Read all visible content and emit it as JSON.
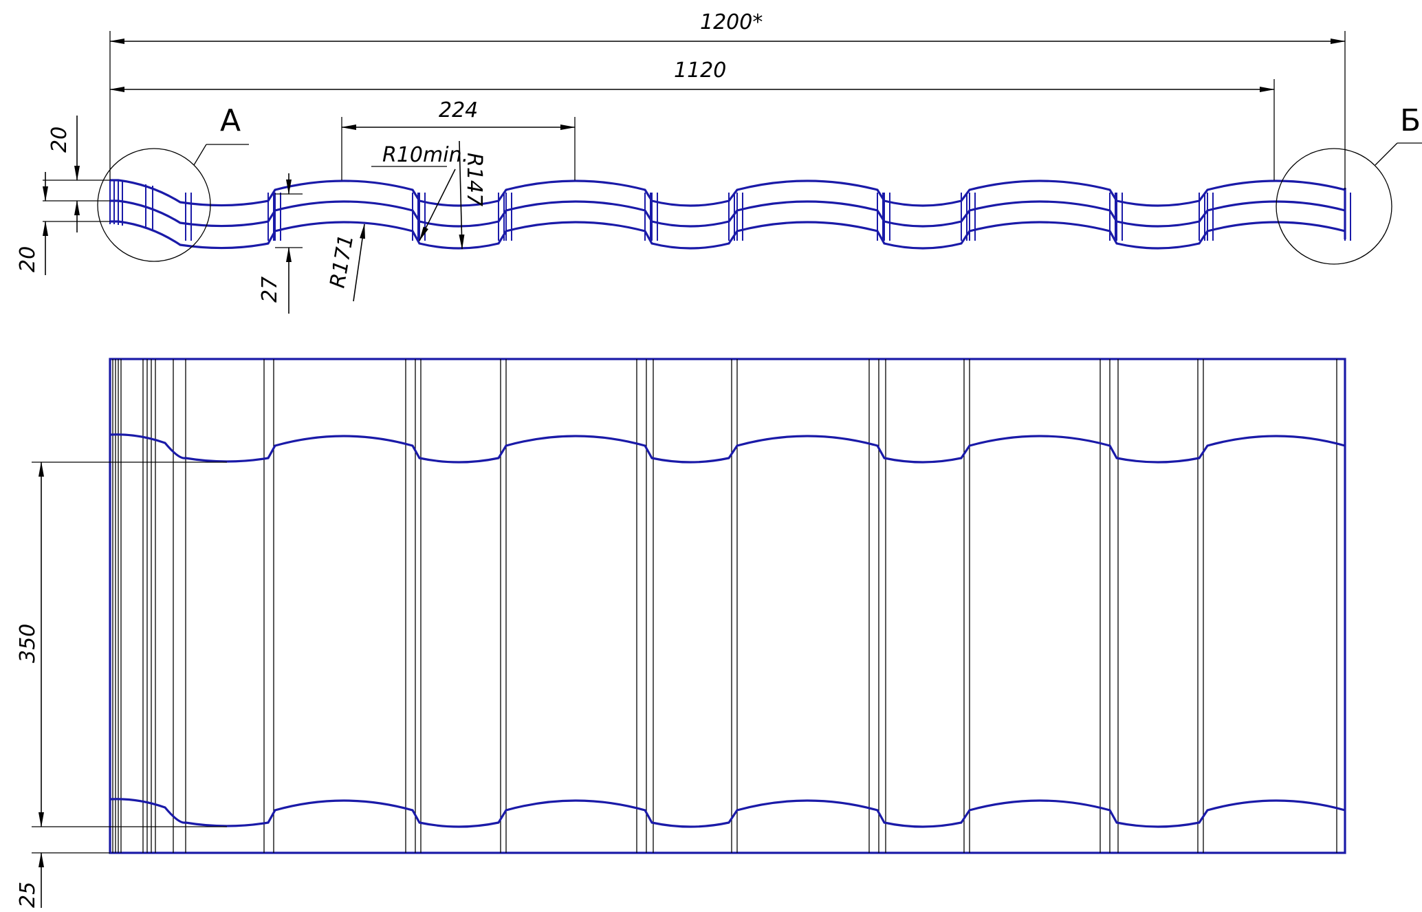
{
  "drawing": {
    "colors": {
      "profile": "#1a1aa8",
      "dimension": "#000000",
      "background": "#ffffff"
    },
    "dimensions": {
      "overall_width": "1200*",
      "effective_width": "1120",
      "wave_pitch": "224",
      "radius_min": "R10min.",
      "radius_crest": "R147",
      "radius_trough": "R171",
      "step_top": "20",
      "step_bottom": "20",
      "profile_height": "27",
      "module_length": "350",
      "edge_offset": "25"
    },
    "detail_labels": {
      "left": "А",
      "right": "Б"
    }
  }
}
